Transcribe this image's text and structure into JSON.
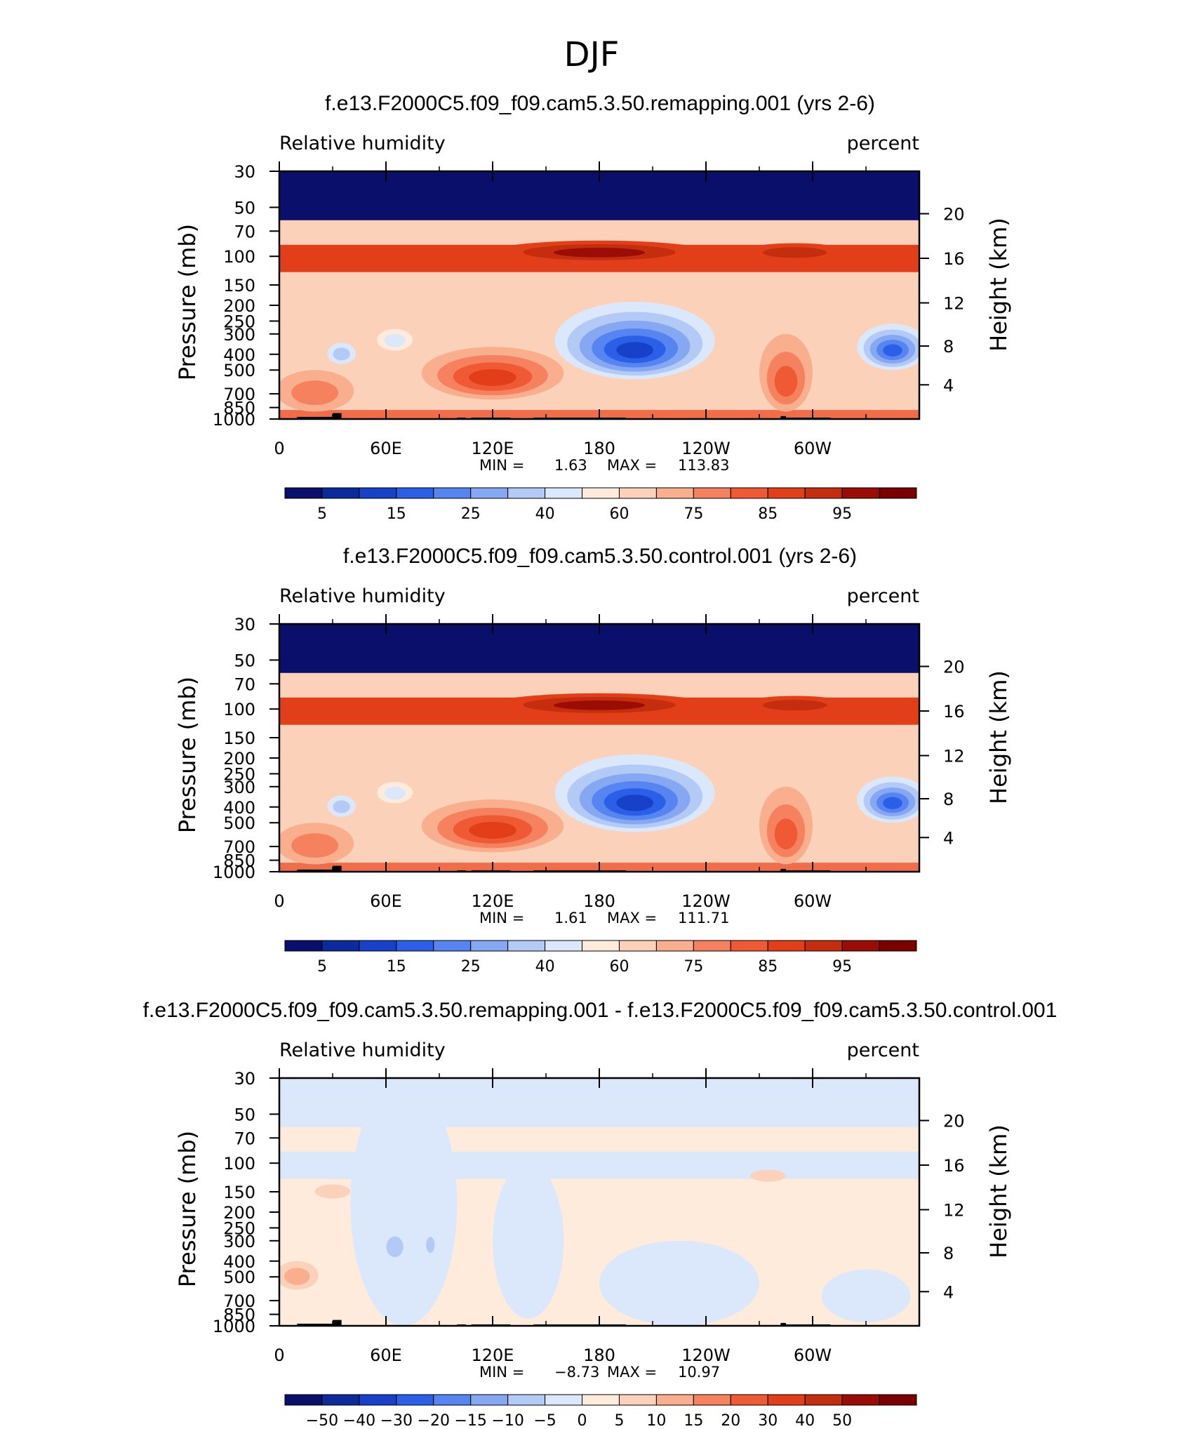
{
  "figure_title": "DJF",
  "colors": {
    "abs_scale": [
      "#0a0f6b",
      "#0b2a9c",
      "#1741c9",
      "#2c5fe8",
      "#5684f0",
      "#86a8f3",
      "#b4caf6",
      "#dbe7fb",
      "#feebdc",
      "#fcd1ba",
      "#f9ae8e",
      "#f5815f",
      "#ef5a35",
      "#e23e1a",
      "#c42d0d",
      "#9a0d05",
      "#7a0000"
    ],
    "diff_scale": [
      "#0a0f6b",
      "#0b2a9c",
      "#1741c9",
      "#2c5fe8",
      "#5684f0",
      "#86a8f3",
      "#b4caf6",
      "#dbe7fb",
      "#feebdc",
      "#fcd1ba",
      "#f9ae8e",
      "#f5815f",
      "#ef5a35",
      "#e23e1a",
      "#c42d0d",
      "#9a0d05",
      "#7a0000"
    ],
    "terrain": "#000000"
  },
  "chart_data": [
    {
      "type": "heatmap",
      "title": "f.e13.F2000C5.f09_f09.cam5.3.50.remapping.001 (yrs 2-6)",
      "left_label": "Relative humidity",
      "right_label": "percent",
      "ylabel": "Pressure (mb)",
      "y2label": "Height (km)",
      "x_ticks": [
        "0",
        "60E",
        "120E",
        "180",
        "120W",
        "60W"
      ],
      "x_tick_lon": [
        0,
        60,
        120,
        180,
        240,
        300
      ],
      "xlim": [
        0,
        360
      ],
      "y_ticks": [
        "30",
        "50",
        "70",
        "100",
        "150",
        "200",
        "250",
        "300",
        "400",
        "500",
        "700",
        "850",
        "1000"
      ],
      "y_tick_p": [
        30,
        50,
        70,
        100,
        150,
        200,
        250,
        300,
        400,
        500,
        700,
        850,
        1000
      ],
      "ylim": [
        30,
        1000
      ],
      "y2_ticks": [
        "20",
        "16",
        "12",
        "8",
        "4"
      ],
      "y2_tick_km": [
        20,
        16,
        12,
        8,
        4
      ],
      "min_label": "MIN =",
      "min": "1.63",
      "max_label": "MAX =",
      "max": "113.83",
      "colorbar_labels": [
        "5",
        "15",
        "25",
        "40",
        "60",
        "75",
        "85",
        "95"
      ],
      "colorbar_label_index": [
        1,
        3,
        5,
        7,
        9,
        11,
        13,
        15
      ],
      "scale": "abs",
      "background_level": 9,
      "upper_band_level": 13,
      "surface_level": 12,
      "top_level": 0,
      "blobs": [
        {
          "lon": 200,
          "p": 380,
          "rlon": 45,
          "rp": 190,
          "levels": [
            7,
            6,
            5,
            4,
            3,
            2
          ]
        },
        {
          "lon": 345,
          "p": 380,
          "rlon": 20,
          "rp": 120,
          "levels": [
            7,
            6,
            5,
            4,
            3
          ]
        },
        {
          "lon": 120,
          "p": 560,
          "rlon": 40,
          "rp": 200,
          "levels": [
            10,
            11,
            12,
            13
          ]
        },
        {
          "lon": 20,
          "p": 700,
          "rlon": 22,
          "rp": 200,
          "levels": [
            10,
            11
          ]
        },
        {
          "lon": 285,
          "p": 600,
          "rlon": 15,
          "rp": 300,
          "levels": [
            10,
            11,
            12
          ]
        },
        {
          "lon": 180,
          "p": 95,
          "rlon": 60,
          "rp": 15,
          "levels": [
            13,
            14,
            15
          ]
        },
        {
          "lon": 290,
          "p": 95,
          "rlon": 30,
          "rp": 12,
          "levels": [
            13,
            14
          ]
        },
        {
          "lon": 35,
          "p": 400,
          "rlon": 8,
          "rp": 60,
          "levels": [
            7,
            6
          ]
        },
        {
          "lon": 65,
          "p": 330,
          "rlon": 10,
          "rp": 50,
          "levels": [
            8,
            7
          ]
        }
      ],
      "terrain": [
        [
          10,
          30,
          970
        ],
        [
          30,
          35,
          920
        ],
        [
          100,
          105,
          980
        ],
        [
          108,
          130,
          980
        ],
        [
          143,
          195,
          980
        ],
        [
          282,
          285,
          960
        ],
        [
          285,
          310,
          980
        ]
      ]
    },
    {
      "type": "heatmap",
      "title": "f.e13.F2000C5.f09_f09.cam5.3.50.control.001 (yrs 2-6)",
      "left_label": "Relative humidity",
      "right_label": "percent",
      "ylabel": "Pressure (mb)",
      "y2label": "Height (km)",
      "x_ticks": [
        "0",
        "60E",
        "120E",
        "180",
        "120W",
        "60W"
      ],
      "x_tick_lon": [
        0,
        60,
        120,
        180,
        240,
        300
      ],
      "xlim": [
        0,
        360
      ],
      "y_ticks": [
        "30",
        "50",
        "70",
        "100",
        "150",
        "200",
        "250",
        "300",
        "400",
        "500",
        "700",
        "850",
        "1000"
      ],
      "y_tick_p": [
        30,
        50,
        70,
        100,
        150,
        200,
        250,
        300,
        400,
        500,
        700,
        850,
        1000
      ],
      "ylim": [
        30,
        1000
      ],
      "y2_ticks": [
        "20",
        "16",
        "12",
        "8",
        "4"
      ],
      "y2_tick_km": [
        20,
        16,
        12,
        8,
        4
      ],
      "min_label": "MIN =",
      "min": "1.61",
      "max_label": "MAX =",
      "max": "111.71",
      "colorbar_labels": [
        "5",
        "15",
        "25",
        "40",
        "60",
        "75",
        "85",
        "95"
      ],
      "colorbar_label_index": [
        1,
        3,
        5,
        7,
        9,
        11,
        13,
        15
      ],
      "scale": "abs",
      "background_level": 9,
      "upper_band_level": 13,
      "surface_level": 12,
      "top_level": 0,
      "blobs": [
        {
          "lon": 200,
          "p": 380,
          "rlon": 45,
          "rp": 190,
          "levels": [
            7,
            6,
            5,
            4,
            3,
            2
          ]
        },
        {
          "lon": 345,
          "p": 380,
          "rlon": 20,
          "rp": 120,
          "levels": [
            7,
            6,
            5,
            4,
            3
          ]
        },
        {
          "lon": 120,
          "p": 560,
          "rlon": 40,
          "rp": 200,
          "levels": [
            10,
            11,
            12,
            13
          ]
        },
        {
          "lon": 20,
          "p": 700,
          "rlon": 22,
          "rp": 200,
          "levels": [
            10,
            11
          ]
        },
        {
          "lon": 285,
          "p": 600,
          "rlon": 15,
          "rp": 300,
          "levels": [
            10,
            11,
            12
          ]
        },
        {
          "lon": 180,
          "p": 95,
          "rlon": 60,
          "rp": 15,
          "levels": [
            13,
            14,
            15
          ]
        },
        {
          "lon": 290,
          "p": 95,
          "rlon": 30,
          "rp": 12,
          "levels": [
            13,
            14
          ]
        },
        {
          "lon": 35,
          "p": 400,
          "rlon": 8,
          "rp": 60,
          "levels": [
            7,
            6
          ]
        },
        {
          "lon": 65,
          "p": 330,
          "rlon": 10,
          "rp": 50,
          "levels": [
            8,
            7
          ]
        }
      ],
      "terrain": [
        [
          10,
          30,
          970
        ],
        [
          30,
          35,
          920
        ],
        [
          100,
          105,
          980
        ],
        [
          108,
          130,
          980
        ],
        [
          143,
          195,
          980
        ],
        [
          282,
          285,
          960
        ],
        [
          285,
          310,
          980
        ]
      ]
    },
    {
      "type": "heatmap",
      "title": "f.e13.F2000C5.f09_f09.cam5.3.50.remapping.001 - f.e13.F2000C5.f09_f09.cam5.3.50.control.001",
      "left_label": "Relative humidity",
      "right_label": "percent",
      "ylabel": "Pressure (mb)",
      "y2label": "Height (km)",
      "x_ticks": [
        "0",
        "60E",
        "120E",
        "180",
        "120W",
        "60W"
      ],
      "x_tick_lon": [
        0,
        60,
        120,
        180,
        240,
        300
      ],
      "xlim": [
        0,
        360
      ],
      "y_ticks": [
        "30",
        "50",
        "70",
        "100",
        "150",
        "200",
        "250",
        "300",
        "400",
        "500",
        "700",
        "850",
        "1000"
      ],
      "y_tick_p": [
        30,
        50,
        70,
        100,
        150,
        200,
        250,
        300,
        400,
        500,
        700,
        850,
        1000
      ],
      "ylim": [
        30,
        1000
      ],
      "y2_ticks": [
        "20",
        "16",
        "12",
        "8",
        "4"
      ],
      "y2_tick_km": [
        20,
        16,
        12,
        8,
        4
      ],
      "min_label": "MIN =",
      "min": "−8.73",
      "max_label": "MAX =",
      "max": "10.97",
      "colorbar_labels": [
        "−50",
        "−40",
        "−30",
        "−20",
        "−15",
        "−10",
        "−5",
        "0",
        "5",
        "10",
        "15",
        "20",
        "30",
        "40",
        "50"
      ],
      "colorbar_label_index": [
        1,
        2,
        3,
        4,
        5,
        6,
        7,
        8,
        9,
        10,
        11,
        12,
        13,
        14,
        15
      ],
      "scale": "diff",
      "background_level": 8,
      "upper_band_level": 7,
      "surface_level": 8,
      "top_level": 7,
      "blobs": [
        {
          "lon": 70,
          "p": 500,
          "rlon": 30,
          "rp": 500,
          "levels": [
            7
          ]
        },
        {
          "lon": 140,
          "p": 500,
          "rlon": 20,
          "rp": 400,
          "levels": [
            7
          ]
        },
        {
          "lon": 225,
          "p": 650,
          "rlon": 45,
          "rp": 350,
          "levels": [
            7
          ]
        },
        {
          "lon": 330,
          "p": 700,
          "rlon": 25,
          "rp": 250,
          "levels": [
            7
          ]
        },
        {
          "lon": 65,
          "p": 330,
          "rlon": 8,
          "rp": 80,
          "levels": [
            7,
            6
          ]
        },
        {
          "lon": 85,
          "p": 320,
          "rlon": 4,
          "rp": 60,
          "levels": [
            7,
            6
          ]
        },
        {
          "lon": 10,
          "p": 500,
          "rlon": 12,
          "rp": 100,
          "levels": [
            9,
            10
          ]
        },
        {
          "lon": 30,
          "p": 150,
          "rlon": 10,
          "rp": 15,
          "levels": [
            9
          ]
        },
        {
          "lon": 275,
          "p": 120,
          "rlon": 10,
          "rp": 10,
          "levels": [
            9
          ]
        }
      ],
      "terrain": [
        [
          10,
          30,
          970
        ],
        [
          30,
          35,
          920
        ],
        [
          100,
          105,
          980
        ],
        [
          108,
          130,
          980
        ],
        [
          143,
          195,
          980
        ],
        [
          282,
          285,
          960
        ],
        [
          285,
          310,
          980
        ]
      ]
    }
  ]
}
